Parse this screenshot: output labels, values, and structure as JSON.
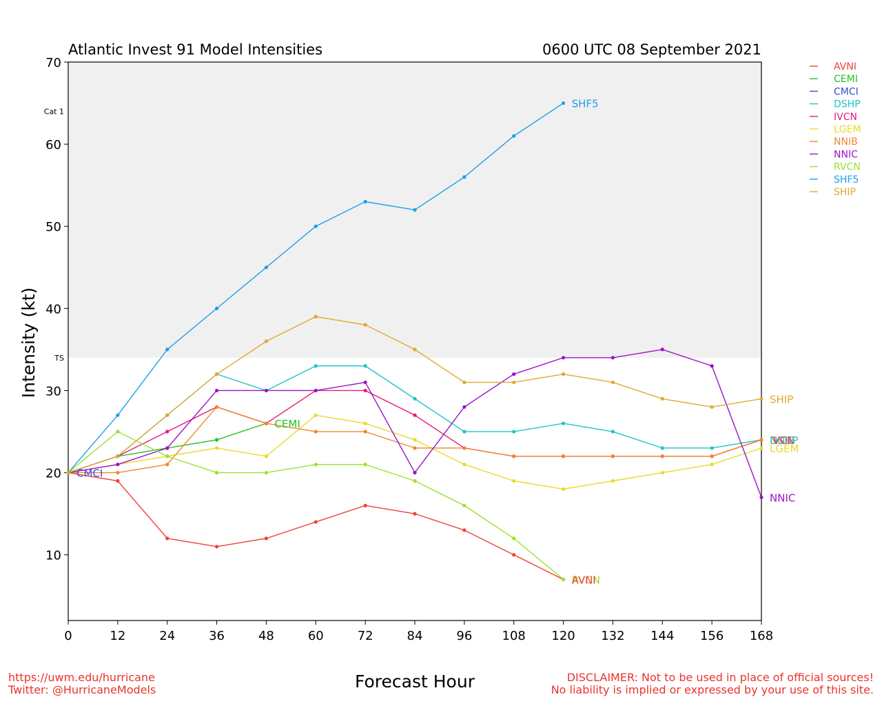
{
  "chart_data": {
    "type": "line",
    "title": "Atlantic Invest 91 Model Intensities",
    "subtitle": "0600 UTC 08 September 2021",
    "xlabel": "Forecast Hour",
    "ylabel": "Intensity (kt)",
    "x_ticks": [
      0,
      12,
      24,
      36,
      48,
      60,
      72,
      84,
      96,
      108,
      120,
      132,
      144,
      156,
      168
    ],
    "y_ticks": [
      10,
      20,
      30,
      40,
      50,
      60,
      70
    ],
    "xlim": [
      0,
      168
    ],
    "ylim": [
      2,
      70
    ],
    "grid": false,
    "legend": "right, outside plot",
    "bands": [
      {
        "label": "Cat 1",
        "from": 64,
        "to": 70,
        "color": "#dcdcdc"
      },
      {
        "label": "TS",
        "from": 34,
        "to": 64,
        "color": "#f0f0f0"
      }
    ],
    "series": [
      {
        "name": "AVNI",
        "color": "#f0403a",
        "x": [
          0,
          12,
          24,
          36,
          48,
          60,
          72,
          84,
          96,
          108,
          120
        ],
        "values": [
          20,
          19,
          12,
          11,
          12,
          14,
          16,
          15,
          13,
          10,
          7
        ]
      },
      {
        "name": "CEMI",
        "color": "#22c21e",
        "x": [
          0,
          12,
          24,
          36,
          48
        ],
        "values": [
          20,
          22,
          23,
          24,
          26
        ]
      },
      {
        "name": "CMCI",
        "color": "#3a4bd6",
        "x": [
          0
        ],
        "values": [
          20
        ]
      },
      {
        "name": "DSHP",
        "color": "#1fc4c4",
        "x": [
          0,
          12,
          24,
          36,
          48,
          60,
          72,
          84,
          96,
          108,
          120,
          132,
          144,
          156,
          168
        ],
        "values": [
          20,
          22,
          27,
          32,
          30,
          33,
          33,
          29,
          25,
          25,
          26,
          25,
          23,
          23,
          24
        ]
      },
      {
        "name": "IVCN",
        "color": "#e8197a",
        "x": [
          0,
          12,
          24,
          36,
          48,
          60,
          72,
          84,
          96,
          108,
          120,
          132,
          144,
          156,
          168
        ],
        "values": [
          20,
          22,
          25,
          28,
          26,
          30,
          30,
          27,
          23,
          22,
          22,
          22,
          22,
          22,
          24
        ]
      },
      {
        "name": "LGEM",
        "color": "#e6dc28",
        "x": [
          0,
          12,
          24,
          36,
          48,
          60,
          72,
          84,
          96,
          108,
          120,
          132,
          144,
          156,
          168
        ],
        "values": [
          20,
          21,
          22,
          23,
          22,
          27,
          26,
          24,
          21,
          19,
          18,
          19,
          20,
          21,
          23
        ]
      },
      {
        "name": "NNIB",
        "color": "#f0862c",
        "x": [
          0,
          12,
          24,
          36,
          48,
          60,
          72,
          84,
          96,
          108,
          120,
          132,
          144,
          156,
          168
        ],
        "values": [
          20,
          20,
          21,
          28,
          26,
          25,
          25,
          23,
          23,
          22,
          22,
          22,
          22,
          22,
          24
        ]
      },
      {
        "name": "NNIC",
        "color": "#9a14c8",
        "x": [
          0,
          12,
          24,
          36,
          48,
          60,
          72,
          84,
          96,
          108,
          120,
          132,
          144,
          156,
          168
        ],
        "values": [
          20,
          21,
          23,
          30,
          30,
          30,
          31,
          20,
          28,
          32,
          34,
          34,
          35,
          33,
          17
        ]
      },
      {
        "name": "RVCN",
        "color": "#9ee02c",
        "x": [
          0,
          12,
          24,
          36,
          48,
          60,
          72,
          84,
          96,
          108,
          120
        ],
        "values": [
          20,
          25,
          22,
          20,
          20,
          21,
          21,
          19,
          16,
          12,
          7
        ]
      },
      {
        "name": "SHF5",
        "color": "#1aa0ea",
        "x": [
          0,
          12,
          24,
          36,
          48,
          60,
          72,
          84,
          96,
          108,
          120
        ],
        "values": [
          20,
          27,
          35,
          40,
          45,
          50,
          53,
          52,
          56,
          61,
          65
        ]
      },
      {
        "name": "SHIP",
        "color": "#e0a830",
        "x": [
          0,
          12,
          24,
          36,
          48,
          60,
          72,
          84,
          96,
          108,
          120,
          132,
          144,
          156,
          168
        ],
        "values": [
          20,
          22,
          27,
          32,
          36,
          39,
          38,
          35,
          31,
          31,
          32,
          31,
          29,
          28,
          29
        ]
      }
    ],
    "end_labels": [
      {
        "series": "SHF5",
        "text": "SHF5",
        "x": 120,
        "y": 65
      },
      {
        "series": "CEMI",
        "text": "CEMI",
        "x": 48,
        "y": 26
      },
      {
        "series": "CMCI",
        "text": "CMCI",
        "x": 0,
        "y": 20
      },
      {
        "series": "SHIP",
        "text": "SHIP",
        "x": 168,
        "y": 29
      },
      {
        "series": "NNIB",
        "text": "NNIB",
        "x": 168,
        "y": 24
      },
      {
        "series": "IVCN",
        "text": "IVCN",
        "x": 168,
        "y": 24
      },
      {
        "series": "DSHP",
        "text": "DSHP",
        "x": 168,
        "y": 24
      },
      {
        "series": "LGEM",
        "text": "LGEM",
        "x": 168,
        "y": 23
      },
      {
        "series": "NNIC",
        "text": "NNIC",
        "x": 168,
        "y": 17
      },
      {
        "series": "RVCN",
        "text": "RVCN",
        "x": 120,
        "y": 7
      },
      {
        "series": "AVNI",
        "text": "AVNI",
        "x": 120,
        "y": 7
      }
    ]
  },
  "footer": {
    "left_line1": "https://uwm.edu/hurricane",
    "left_line2": "Twitter: @HurricaneModels",
    "right_line1": "DISCLAIMER: Not to be used in place of official sources!",
    "right_line2": "No liability is implied or expressed by your use of this site."
  }
}
